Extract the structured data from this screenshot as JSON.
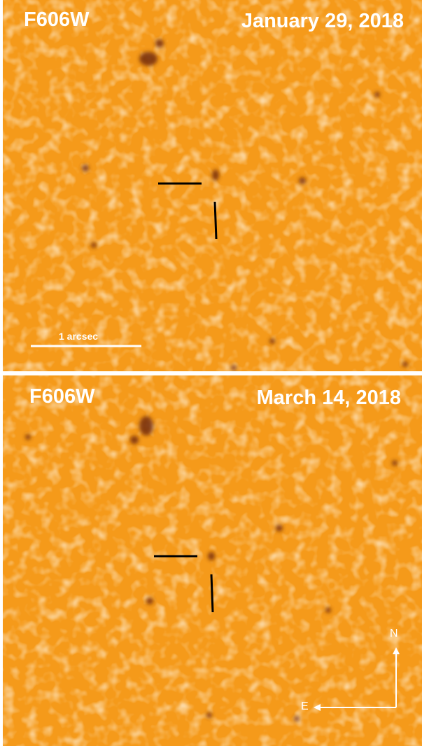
{
  "panels": [
    {
      "filter": "F606W",
      "date": "January 29, 2018"
    },
    {
      "filter": "F606W",
      "date": "March 14, 2018"
    }
  ],
  "scale_bar": {
    "label": "1 arcsec"
  },
  "compass": {
    "north": "N",
    "east": "E"
  },
  "colors": {
    "background": "#f59a1a",
    "bright": "#fde0b0",
    "dark": "#8a3c10",
    "marker": "#000000",
    "text": "#ffffff"
  }
}
